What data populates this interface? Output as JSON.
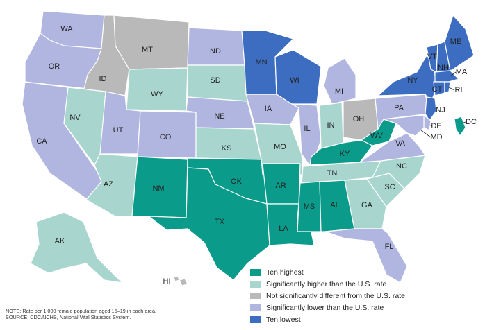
{
  "colors": {
    "ten_highest": "#0b9b8b",
    "sig_higher": "#a8d6ce",
    "not_sig": "#b9b9b9",
    "sig_lower": "#b0b6df",
    "ten_lowest": "#3c6dc1"
  },
  "legend": [
    {
      "key": "ten_highest",
      "label": "Ten highest"
    },
    {
      "key": "sig_higher",
      "label": "Significantly higher than the U.S. rate"
    },
    {
      "key": "not_sig",
      "label": "Not significantly different from the U.S. rate"
    },
    {
      "key": "sig_lower",
      "label": "Significantly lower than the U.S. rate"
    },
    {
      "key": "ten_lowest",
      "label": "Ten lowest"
    }
  ],
  "states": [
    {
      "code": "WA",
      "cat": "sig_lower"
    },
    {
      "code": "OR",
      "cat": "sig_lower"
    },
    {
      "code": "CA",
      "cat": "sig_lower"
    },
    {
      "code": "ID",
      "cat": "not_sig"
    },
    {
      "code": "MT",
      "cat": "not_sig"
    },
    {
      "code": "WY",
      "cat": "sig_higher"
    },
    {
      "code": "NV",
      "cat": "sig_higher"
    },
    {
      "code": "UT",
      "cat": "sig_lower"
    },
    {
      "code": "CO",
      "cat": "sig_lower"
    },
    {
      "code": "AZ",
      "cat": "sig_higher"
    },
    {
      "code": "NM",
      "cat": "ten_highest"
    },
    {
      "code": "ND",
      "cat": "sig_lower"
    },
    {
      "code": "SD",
      "cat": "sig_higher"
    },
    {
      "code": "NE",
      "cat": "sig_lower"
    },
    {
      "code": "KS",
      "cat": "sig_higher"
    },
    {
      "code": "OK",
      "cat": "ten_highest"
    },
    {
      "code": "TX",
      "cat": "ten_highest"
    },
    {
      "code": "MN",
      "cat": "ten_lowest"
    },
    {
      "code": "IA",
      "cat": "sig_lower"
    },
    {
      "code": "MO",
      "cat": "sig_higher"
    },
    {
      "code": "AR",
      "cat": "ten_highest"
    },
    {
      "code": "LA",
      "cat": "ten_highest"
    },
    {
      "code": "WI",
      "cat": "ten_lowest"
    },
    {
      "code": "IL",
      "cat": "sig_lower"
    },
    {
      "code": "MI",
      "cat": "sig_lower"
    },
    {
      "code": "IN",
      "cat": "sig_higher"
    },
    {
      "code": "OH",
      "cat": "not_sig"
    },
    {
      "code": "KY",
      "cat": "ten_highest"
    },
    {
      "code": "TN",
      "cat": "sig_higher"
    },
    {
      "code": "MS",
      "cat": "ten_highest"
    },
    {
      "code": "AL",
      "cat": "ten_highest"
    },
    {
      "code": "GA",
      "cat": "sig_higher"
    },
    {
      "code": "FL",
      "cat": "sig_lower"
    },
    {
      "code": "SC",
      "cat": "sig_higher"
    },
    {
      "code": "NC",
      "cat": "sig_higher"
    },
    {
      "code": "VA",
      "cat": "sig_lower"
    },
    {
      "code": "WV",
      "cat": "ten_highest"
    },
    {
      "code": "PA",
      "cat": "sig_lower"
    },
    {
      "code": "NY",
      "cat": "ten_lowest"
    },
    {
      "code": "VT",
      "cat": "ten_lowest"
    },
    {
      "code": "NH",
      "cat": "ten_lowest"
    },
    {
      "code": "ME",
      "cat": "ten_lowest"
    },
    {
      "code": "MA",
      "cat": "ten_lowest"
    },
    {
      "code": "CT",
      "cat": "ten_lowest"
    },
    {
      "code": "RI",
      "cat": "ten_lowest"
    },
    {
      "code": "NJ",
      "cat": "ten_lowest"
    },
    {
      "code": "DE",
      "cat": "sig_lower"
    },
    {
      "code": "MD",
      "cat": "sig_lower"
    },
    {
      "code": "DC",
      "cat": "ten_highest"
    },
    {
      "code": "AK",
      "cat": "sig_higher"
    },
    {
      "code": "HI",
      "cat": "not_sig"
    }
  ],
  "note": "NOTE: Rate per 1,000 female population aged 15–19 in each area.",
  "source": "SOURCE: CDC/NCHS, National Vital Statistics System."
}
